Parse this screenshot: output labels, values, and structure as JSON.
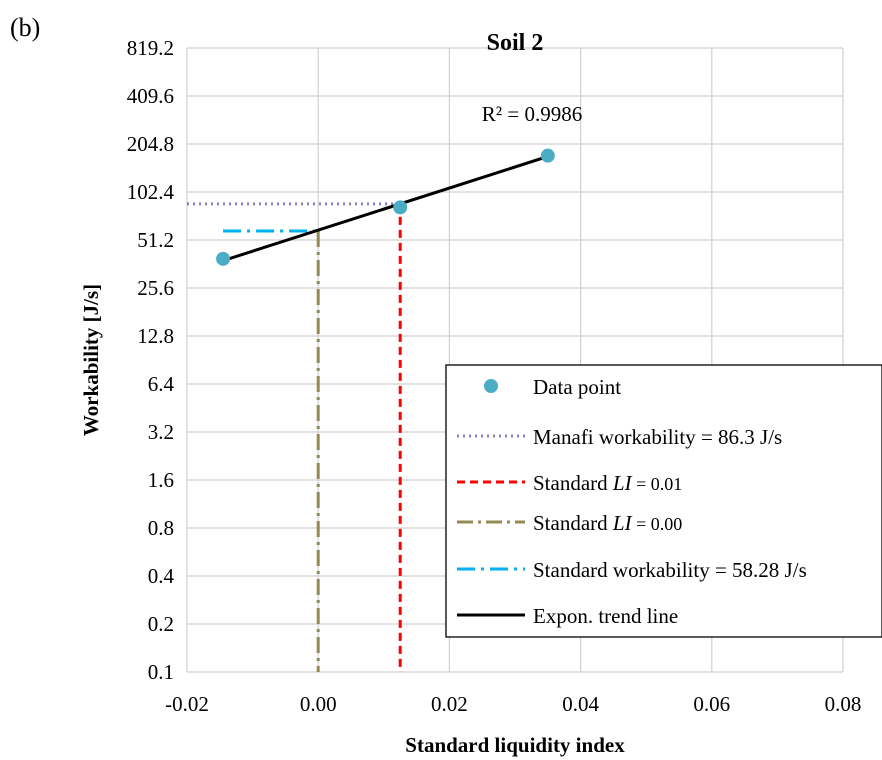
{
  "panel_label": "(b)",
  "chart_data": {
    "type": "scatter",
    "title": "Soil 2",
    "xlabel": "Standard liquidity index",
    "ylabel": "Workability [J/s]",
    "y_scale": "log2",
    "xlim": [
      -0.02,
      0.08
    ],
    "ylim": [
      0.1,
      819.2
    ],
    "x_ticks": [
      "-0.02",
      "0.00",
      "0.02",
      "0.04",
      "0.06",
      "0.08"
    ],
    "y_ticks": [
      "0.1",
      "0.2",
      "0.4",
      "0.8",
      "1.6",
      "3.2",
      "6.4",
      "12.8",
      "25.6",
      "51.2",
      "102.4",
      "204.8",
      "409.6",
      "819.2"
    ],
    "grid": true,
    "legend_position": "bottom-right",
    "annotation": "R² = 0.9986",
    "series": [
      {
        "name": "Data point",
        "kind": "scatter",
        "color": "#4bacc6",
        "x": [
          -0.0145,
          0.0125,
          0.035
        ],
        "y": [
          39,
          82,
          173
        ]
      },
      {
        "name": "Manafi workability = 86.3 J/s",
        "kind": "hline",
        "color": "#8e7cc3",
        "y": 86.3,
        "x": [
          -0.02,
          0.0125
        ]
      },
      {
        "name": "Standard",
        "italic": "LI",
        "suffix": " = 0.01",
        "kind": "vline",
        "color": "#ff0000",
        "x": 0.0125,
        "y": [
          0.1,
          86.3
        ]
      },
      {
        "name": "Standard",
        "italic": "LI",
        "suffix": " = 0.00",
        "kind": "vline",
        "color": "#948a54",
        "x": 0.0,
        "y": [
          0.1,
          58.28
        ]
      },
      {
        "name": "Standard workability = 58.28 J/s",
        "kind": "hline",
        "color": "#00b0f0",
        "y": 58.28,
        "x": [
          -0.0145,
          0.0
        ]
      },
      {
        "name": "Expon. trend line",
        "kind": "trend",
        "color": "#000000",
        "x": [
          -0.0145,
          0.035
        ],
        "y": [
          38,
          171
        ]
      }
    ]
  }
}
